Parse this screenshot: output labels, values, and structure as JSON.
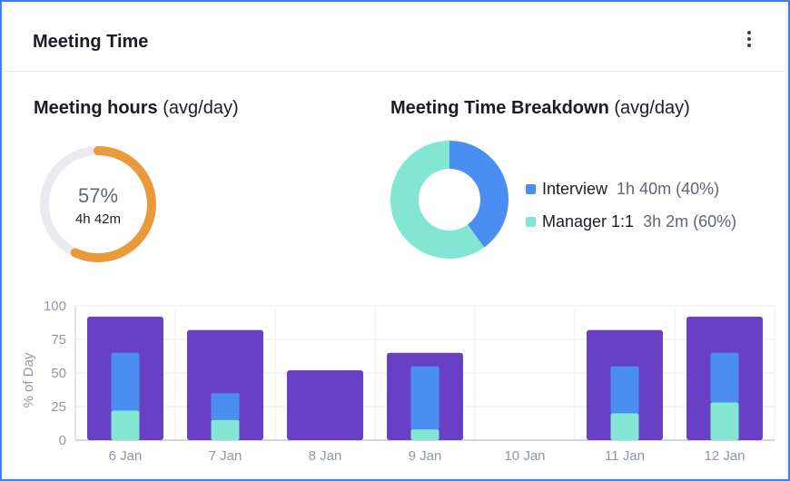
{
  "card": {
    "title": "Meeting Time",
    "menu_icon": "kebab-vertical-icon"
  },
  "hours": {
    "title": "Meeting hours",
    "title_suffix": "(avg/day)",
    "percent_value": 57,
    "percent_label": "57%",
    "time_label": "4h 42m",
    "colors": {
      "fill": "#ea9a3a",
      "track": "#e9ebef"
    }
  },
  "breakdown": {
    "title": "Meeting Time Breakdown",
    "title_suffix": "(avg/day)",
    "items": [
      {
        "name": "Interview",
        "value": "1h 40m (40%)",
        "percent": 40,
        "color": "#4b8ef2"
      },
      {
        "name": "Manager 1:1",
        "value": "3h 2m (60%)",
        "percent": 60,
        "color": "#83e6d3"
      }
    ]
  },
  "chart_data": {
    "type": "bar",
    "ylabel": "% of Day",
    "ylim": [
      0,
      100
    ],
    "yticks": [
      0,
      25,
      50,
      75,
      100
    ],
    "grid": true,
    "categories": [
      "6 Jan",
      "7 Jan",
      "8 Jan",
      "9 Jan",
      "10 Jan",
      "11 Jan",
      "12 Jan"
    ],
    "total": [
      92,
      82,
      52,
      65,
      0,
      82,
      92
    ],
    "series": [
      {
        "name": "Interview",
        "values": [
          43,
          20,
          0,
          47,
          0,
          35,
          37
        ],
        "color": "#4b8ef2"
      },
      {
        "name": "Manager 1:1",
        "values": [
          22,
          15,
          0,
          8,
          0,
          20,
          28
        ],
        "color": "#83e6d3"
      }
    ],
    "colors": {
      "total": "#6840c4",
      "grid": "#eceef2",
      "axis": "#c4c8d0",
      "label": "#9097a6"
    }
  }
}
